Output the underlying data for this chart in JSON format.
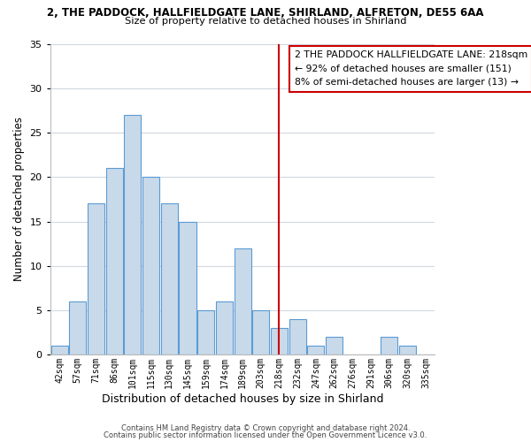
{
  "title_line1": "2, THE PADDOCK, HALLFIELDGATE LANE, SHIRLAND, ALFRETON, DE55 6AA",
  "title_line2": "Size of property relative to detached houses in Shirland",
  "xlabel": "Distribution of detached houses by size in Shirland",
  "ylabel": "Number of detached properties",
  "bin_labels": [
    "42sqm",
    "57sqm",
    "71sqm",
    "86sqm",
    "101sqm",
    "115sqm",
    "130sqm",
    "145sqm",
    "159sqm",
    "174sqm",
    "189sqm",
    "203sqm",
    "218sqm",
    "232sqm",
    "247sqm",
    "262sqm",
    "276sqm",
    "291sqm",
    "306sqm",
    "320sqm",
    "335sqm"
  ],
  "bar_heights": [
    1,
    6,
    17,
    21,
    27,
    20,
    17,
    15,
    5,
    6,
    12,
    5,
    3,
    4,
    1,
    2,
    0,
    0,
    2,
    1,
    0
  ],
  "bar_color": "#c8daea",
  "bar_edge_color": "#5b9bd5",
  "vline_x": 12,
  "vline_color": "#cc0000",
  "ylim": [
    0,
    35
  ],
  "yticks": [
    0,
    5,
    10,
    15,
    20,
    25,
    30,
    35
  ],
  "annotation_text": "2 THE PADDOCK HALLFIELDGATE LANE: 218sqm\n← 92% of detached houses are smaller (151)\n8% of semi-detached houses are larger (13) →",
  "footer_line1": "Contains HM Land Registry data © Crown copyright and database right 2024.",
  "footer_line2": "Contains public sector information licensed under the Open Government Licence v3.0.",
  "background_color": "#ffffff",
  "grid_color": "#d0d8e0"
}
